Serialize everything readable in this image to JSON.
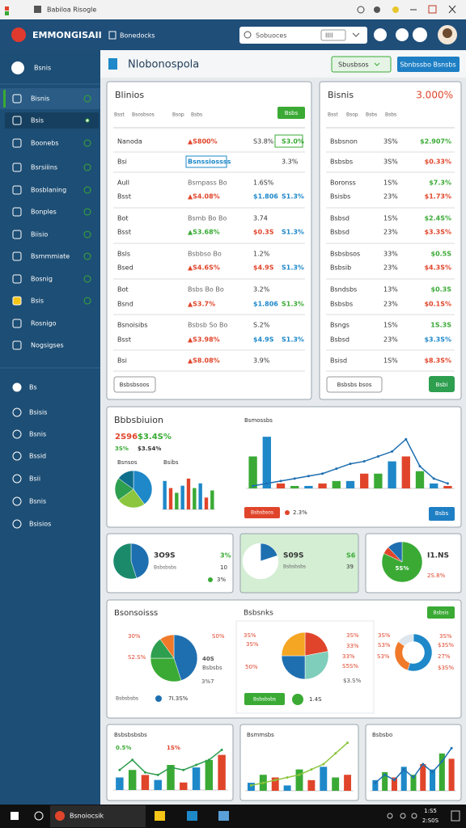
{
  "window": {
    "title": "Babiloa Risogle"
  },
  "header": {
    "brand": "EMMONGISAII",
    "section": "Bonedocks",
    "search": "Sobuoces",
    "search_chip": "IIII"
  },
  "sidebar": {
    "top": "Bsnis",
    "items": [
      "Bisnis",
      "Bsis",
      "Boonebs",
      "Bsrsiiins",
      "Bosblaning",
      "Bonples",
      "Biisio",
      "Bsmmmiate",
      "Bosnig",
      "Bsis",
      "Rosnigo",
      "Nogsigses"
    ],
    "section_items": [
      "Bs",
      "Bsisis",
      "Bsnis",
      "Bssid",
      "Bsii",
      "Bsnis",
      "Bsisios"
    ]
  },
  "toolbar": {
    "title": "Nlobonospola",
    "filter": "Sbusbsos",
    "action": "Sbnbssbo Bsnsbs"
  },
  "table_left": {
    "title": "Blinios",
    "button": "Bsbs",
    "headers": [
      "Bsst",
      "Bsosbsos",
      "Bsop",
      "Bsbs"
    ],
    "footer_button": "Bsbsbsoos",
    "rows": [
      {
        "cells": [
          "Nanoda",
          "▲S800%",
          "S3.8%",
          "S3.0%"
        ],
        "colors": [
          "#333333",
          "#e0452b",
          "#333333",
          "#3aaa35"
        ]
      },
      {
        "cells": [
          "Bsi",
          "Bsnssiossss",
          null,
          "3.3%"
        ],
        "colors": [
          "#333333",
          "#1e88c9",
          "#333333",
          "#333333"
        ]
      },
      {
        "cells": [
          "Aull",
          "Bsmpass Bo",
          "1.6S%",
          null
        ],
        "colors": [
          "#333333",
          "#666666",
          "#333333",
          "#333333"
        ]
      },
      {
        "cells": [
          "Bsst",
          "▲S4.08%",
          "$1.806",
          "S1.3%"
        ],
        "colors": [
          "#333333",
          "#e0452b",
          "#1e88c9",
          "#1e88c9"
        ]
      },
      {
        "cells": [
          "Bot",
          "Bsmb Bo Bo",
          "3.74",
          null
        ],
        "colors": [
          "#333333",
          "#666666",
          "#333333",
          "#333333"
        ]
      },
      {
        "cells": [
          "Bsst",
          "▲S3.68%",
          "$0.3S",
          "S1.3%"
        ],
        "colors": [
          "#333333",
          "#3aaa35",
          "#e0452b",
          "#1e88c9"
        ]
      },
      {
        "cells": [
          "Bsls",
          "Bsbbso Bo",
          "1.2%",
          null
        ],
        "colors": [
          "#333333",
          "#666666",
          "#333333",
          "#333333"
        ]
      },
      {
        "cells": [
          "Bsed",
          "▲S4.6S%",
          "$4.9S",
          "S1.3%"
        ],
        "colors": [
          "#333333",
          "#e0452b",
          "#e0452b",
          "#1e88c9"
        ]
      },
      {
        "cells": [
          "Bot",
          "Bsbs Bo Bo",
          "3.2%",
          null
        ],
        "colors": [
          "#333333",
          "#666666",
          "#333333",
          "#333333"
        ]
      },
      {
        "cells": [
          "Bsnd",
          "▲S3.7%",
          "$1.806",
          "S1.3%"
        ],
        "colors": [
          "#333333",
          "#e0452b",
          "#1e88c9",
          "#3aaa35"
        ]
      },
      {
        "cells": [
          "Bsnoisibs",
          "Bsbsb So Bo",
          "S.2%",
          null
        ],
        "colors": [
          "#333333",
          "#666666",
          "#333333",
          "#333333"
        ]
      },
      {
        "cells": [
          "Bsst",
          "▲S3.98%",
          "$4.9S",
          "S1.3%"
        ],
        "colors": [
          "#333333",
          "#e0452b",
          "#1e88c9",
          "#1e88c9"
        ]
      },
      {
        "cells": [
          "Bsi",
          "▲S8.08%",
          "3.9%",
          null
        ],
        "colors": [
          "#333333",
          "#e0452b",
          "#333333",
          "#333333"
        ]
      }
    ]
  },
  "table_right": {
    "title": "Bisnis",
    "title_value": "3.000%",
    "headers": [
      "Bsst",
      "Bsop",
      "Bsbs",
      "Bsbs"
    ],
    "footer_button": "Bsbsbs bsos",
    "button": "Bsbi",
    "rows": [
      {
        "cells": [
          "Bsbsnon",
          "3S%",
          "$2.907%"
        ],
        "colors": [
          "#333333",
          "#333333",
          "#3aaa35"
        ]
      },
      {
        "cells": [
          "Bsbsbs",
          "3S%",
          "$0.33%"
        ],
        "colors": [
          "#333333",
          "#333333",
          "#e0452b"
        ]
      },
      {
        "cells": [
          "Boronss",
          "1S%",
          "$7.3%"
        ],
        "colors": [
          "#333333",
          "#333333",
          "#3aaa35"
        ]
      },
      {
        "cells": [
          "Bsisbs",
          "23%",
          "$1.73%"
        ],
        "colors": [
          "#333333",
          "#333333",
          "#e0452b"
        ]
      },
      {
        "cells": [
          "Bsbsd",
          "1S%",
          "$2.4S%"
        ],
        "colors": [
          "#333333",
          "#333333",
          "#3aaa35"
        ]
      },
      {
        "cells": [
          "Bsbsd",
          "23%",
          "$3.3S%"
        ],
        "colors": [
          "#333333",
          "#333333",
          "#e0452b"
        ]
      },
      {
        "cells": [
          "Bsbsbsos",
          "33%",
          "$0.5S"
        ],
        "colors": [
          "#333333",
          "#333333",
          "#3aaa35"
        ]
      },
      {
        "cells": [
          "Bsbsib",
          "23%",
          "$4.3S%"
        ],
        "colors": [
          "#333333",
          "#333333",
          "#e0452b"
        ]
      },
      {
        "cells": [
          "Bsndsbs",
          "13%",
          "$0.3S"
        ],
        "colors": [
          "#333333",
          "#333333",
          "#3aaa35"
        ]
      },
      {
        "cells": [
          "Bsbsbs",
          "23%",
          "$0.1S%"
        ],
        "colors": [
          "#333333",
          "#333333",
          "#e0452b"
        ]
      },
      {
        "cells": [
          "Bsngs",
          "1S%",
          "1S.3S"
        ],
        "colors": [
          "#333333",
          "#333333",
          "#3aaa35"
        ]
      },
      {
        "cells": [
          "Bsbsd",
          "23%",
          "$3.3S%"
        ],
        "colors": [
          "#333333",
          "#333333",
          "#1e88c9"
        ]
      },
      {
        "cells": [
          "Bsisd",
          "1S%",
          "$8.3S%"
        ],
        "colors": [
          "#333333",
          "#333333",
          "#e0452b"
        ]
      }
    ]
  },
  "overview": {
    "title": "Bbbsbiuion",
    "kpis": [
      "2S96",
      "$3.4S%",
      "3S%",
      "$3.S4%"
    ],
    "kpi_colors": [
      "#e0452b",
      "#3aaa35",
      "#3aaa35",
      "#333333"
    ],
    "donut_label": "Bsnsos",
    "bars_label": "Bsibs",
    "chart_title": "Bsmossbs",
    "button": "Bsbsbsos",
    "change": "2.3%",
    "action": "Bsbs"
  },
  "stats": [
    {
      "value": "3O9S",
      "side": "3%",
      "note": "Bsbsbsbs",
      "side2": "10",
      "foot": "3%"
    },
    {
      "value": "S09S",
      "side": "S6",
      "note": "Bsbsbsbs",
      "side2": "39"
    },
    {
      "value": "I1.NS",
      "inner": "5S%",
      "foot": "2S.8%"
    }
  ],
  "breakdown": {
    "title": "Bsonsoisss",
    "subtitle": "Bsbsnks",
    "button": "Bsbsis",
    "label_color": "#e0452b",
    "left_labels": [
      "30%",
      "S0%",
      "S2.S%",
      "40S",
      "Bsbsbs",
      "3%7"
    ],
    "left_note": "Bsbsbsbs",
    "left_value": "7I.3S%",
    "mid_labels": [
      "3S%",
      "3S%",
      "50%",
      "3S%",
      "33%",
      "33%",
      "S5S%",
      "$3.S%"
    ],
    "mid_button": "Bsbsbsbs",
    "mid_value": "1.4S",
    "right_labels": [
      "3S%",
      "S3%",
      "S3%",
      "3S%",
      "$3S%",
      "27%",
      "$3S%"
    ]
  },
  "trend_cards": [
    {
      "title": "Bsbsbsbsbs",
      "labels": [
        "0.5%",
        "1S%"
      ]
    },
    {
      "title": "Bsmmsbs"
    },
    {
      "title": "Bsbsbo"
    }
  ],
  "charts": [
    {
      "type": "pie",
      "values": [
        40,
        25,
        20,
        15
      ],
      "colors": [
        "#1e88c9",
        "#8cc63f",
        "#2e9e4f",
        "#0f6e8c"
      ]
    },
    {
      "type": "bar",
      "values": [
        12,
        9,
        7,
        10,
        13,
        9,
        11,
        5,
        8
      ],
      "colors": [
        "#1e88c9",
        "#e0452b",
        "#3aaa35"
      ],
      "ylim": [
        0,
        15
      ]
    },
    {
      "type": "bar_line",
      "values": [
        13,
        21,
        2,
        1,
        1,
        2,
        3,
        3,
        6,
        6,
        11,
        13,
        7,
        2,
        1
      ],
      "line": [
        1,
        2,
        3,
        4,
        5,
        6,
        8,
        10,
        11,
        13,
        15,
        20,
        9,
        4,
        2
      ],
      "colors": [
        "#3aaa35",
        "#1e88c9",
        "#e0452b"
      ],
      "line_color": "#1e6fb0",
      "ylim": [
        0,
        25
      ]
    },
    {
      "type": "pie",
      "values": [
        45,
        55
      ],
      "colors": [
        "#1e6fb0",
        "#1b8a6b"
      ]
    },
    {
      "type": "pie",
      "values": [
        20,
        80
      ],
      "colors": [
        "#1e6fb0",
        "#ffffff"
      ]
    },
    {
      "type": "pie",
      "values": [
        82,
        6,
        12
      ],
      "colors": [
        "#3aaa35",
        "#e0452b",
        "#1e6fb0"
      ]
    },
    {
      "type": "pie",
      "values": [
        45,
        30,
        15,
        10
      ],
      "colors": [
        "#1e6fb0",
        "#3aaa35",
        "#2e9e4f",
        "#f07a2a"
      ]
    },
    {
      "type": "pie",
      "values": [
        22,
        28,
        25,
        25
      ],
      "colors": [
        "#e0452b",
        "#7fcdbb",
        "#1e6fb0",
        "#f5a623"
      ]
    },
    {
      "type": "pie",
      "donut": true,
      "values": [
        55,
        30,
        15
      ],
      "colors": [
        "#1e88c9",
        "#f07a2a",
        "#dde6ec"
      ]
    },
    {
      "type": "bar_line",
      "values": [
        5,
        8,
        6,
        4,
        10,
        3,
        9,
        12,
        14
      ],
      "line": [
        8,
        12,
        7,
        6,
        9,
        8,
        10,
        12,
        16
      ],
      "colors": [
        "#1e88c9",
        "#3aaa35",
        "#e0452b"
      ],
      "line_color": "#2e9e4f",
      "ylim": [
        0,
        20
      ]
    },
    {
      "type": "bar_line",
      "values": [
        3,
        6,
        5,
        2,
        8,
        4,
        9,
        5,
        6
      ],
      "line": [
        2,
        3,
        4,
        5,
        6,
        8,
        10,
        14,
        18
      ],
      "colors": [
        "#1e88c9",
        "#3aaa35",
        "#e0452b"
      ],
      "line_color": "#8cc63f",
      "ylim": [
        0,
        20
      ]
    },
    {
      "type": "bar_line",
      "values": [
        4,
        7,
        5,
        9,
        6,
        10,
        8,
        14,
        12
      ],
      "line": [
        3,
        6,
        4,
        8,
        5,
        10,
        7,
        11,
        16
      ],
      "colors": [
        "#1e88c9",
        "#3aaa35",
        "#e0452b"
      ],
      "line_color": "#1e6fb0",
      "ylim": [
        0,
        20
      ]
    }
  ],
  "taskbar": {
    "app": "Bsnoiocsik",
    "time": "1:S5",
    "date": "2:S0S"
  }
}
